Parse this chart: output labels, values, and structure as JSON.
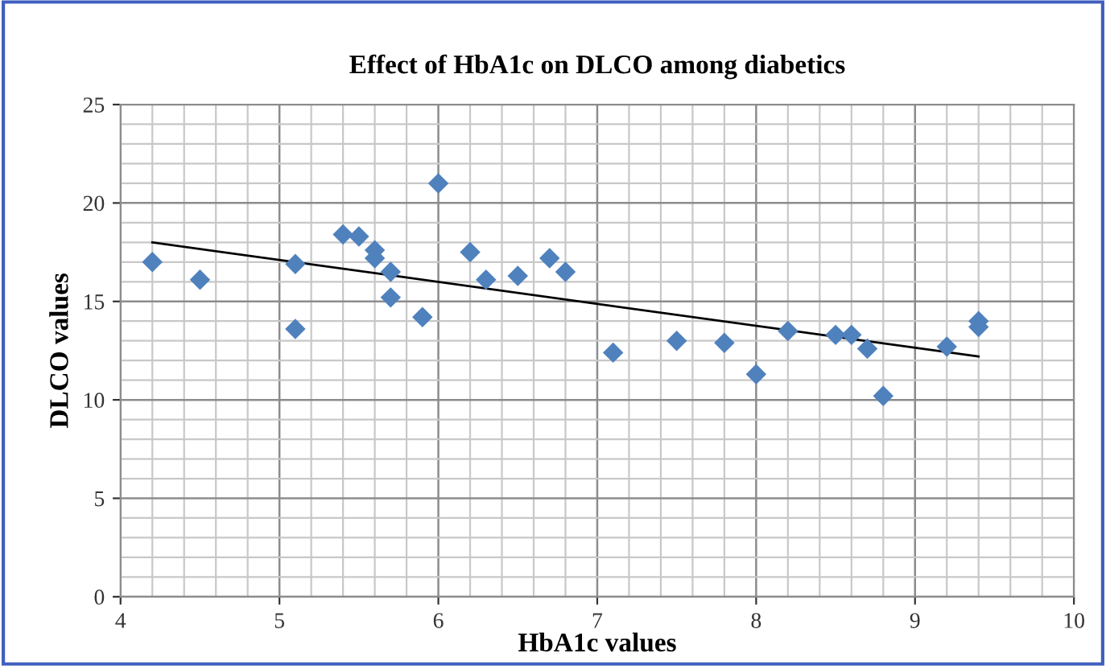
{
  "chart_data": {
    "type": "scatter",
    "title": "Effect of HbA1c on DLCO among diabetics",
    "xlabel": "HbA1c values",
    "ylabel": "DLCO values",
    "xlim": [
      4,
      10
    ],
    "ylim": [
      0,
      25
    ],
    "xticks": [
      4,
      5,
      6,
      7,
      8,
      9,
      10
    ],
    "yticks": [
      0,
      5,
      10,
      15,
      20,
      25
    ],
    "grid": true,
    "series": [
      {
        "marker": "diamond",
        "color": "#4f81bd",
        "x": [
          4.2,
          4.5,
          5.1,
          5.1,
          5.4,
          5.5,
          5.6,
          5.6,
          5.7,
          5.7,
          5.9,
          6.0,
          6.2,
          6.3,
          6.5,
          6.7,
          6.8,
          7.1,
          7.5,
          7.8,
          8.0,
          8.2,
          8.5,
          8.6,
          8.7,
          8.8,
          9.2,
          9.4,
          9.4
        ],
        "values": [
          17,
          16.1,
          16.9,
          13.6,
          18.4,
          18.3,
          17.6,
          17.2,
          16.5,
          15.2,
          14.2,
          21,
          17.5,
          16.1,
          16.3,
          17.2,
          16.5,
          12.4,
          13,
          12.9,
          11.3,
          13.5,
          13.3,
          13.3,
          12.6,
          10.2,
          12.7,
          14,
          13.7
        ]
      },
      {
        "type": "line",
        "marker": "none",
        "color": "#000000",
        "x": [
          4.2,
          9.4
        ],
        "values": [
          18.0,
          12.2
        ]
      }
    ]
  }
}
